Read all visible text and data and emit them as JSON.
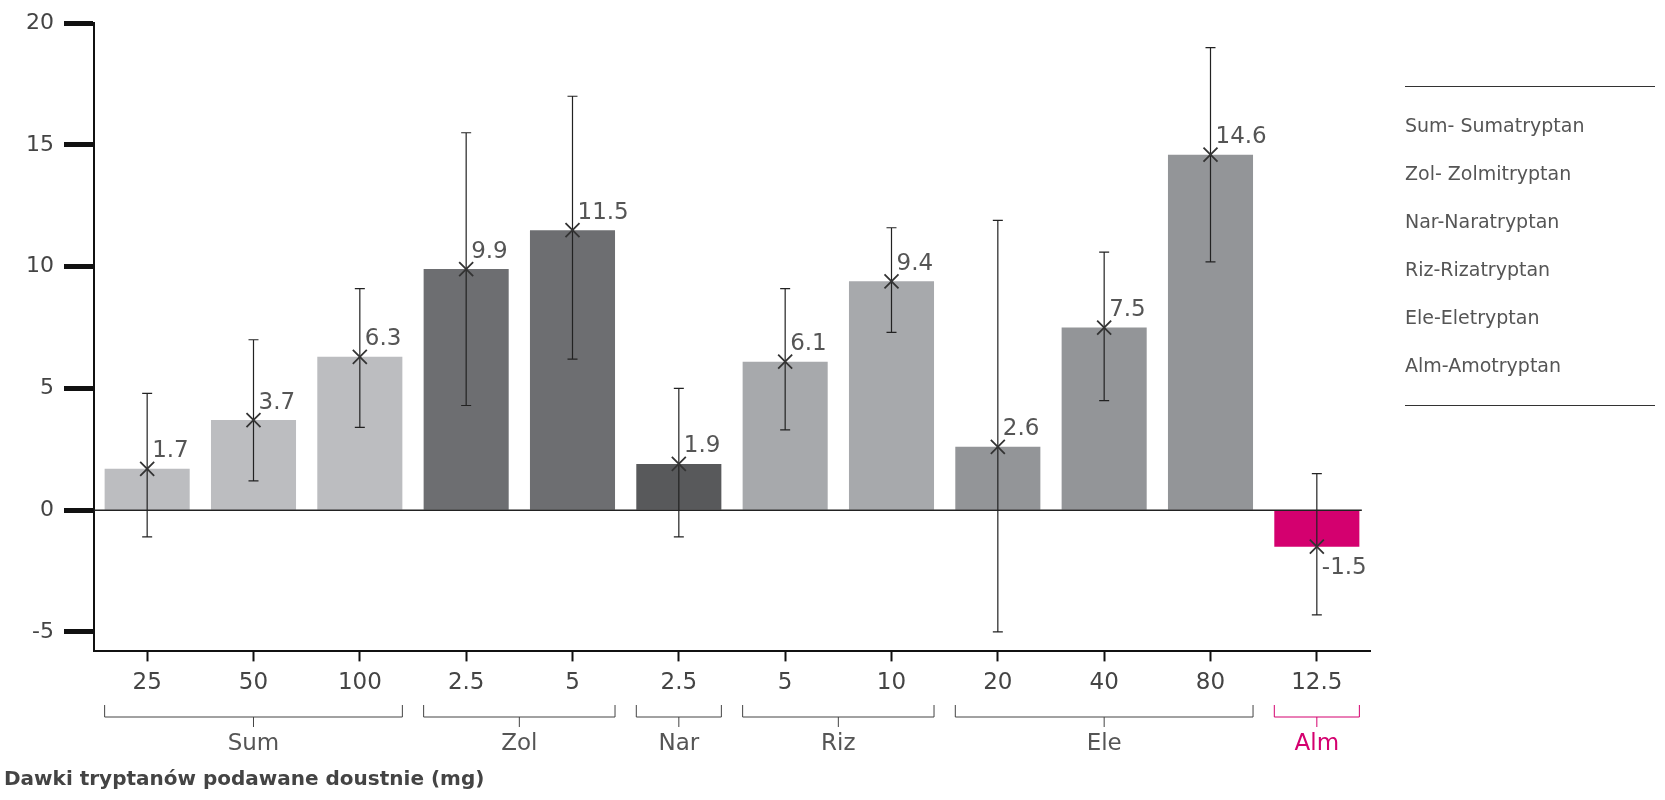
{
  "chart_data": {
    "type": "bar",
    "xlabel": "Dawki tryptanów podawane doustnie (mg)",
    "categories": [
      "25",
      "50",
      "100",
      "2.5",
      "5",
      "2.5",
      "5",
      "10",
      "20",
      "40",
      "80",
      "12.5"
    ],
    "values": [
      1.7,
      3.7,
      6.3,
      9.9,
      11.5,
      1.9,
      6.1,
      9.4,
      2.6,
      7.5,
      14.6,
      -1.5
    ],
    "colors": [
      "#bcbdc0",
      "#bcbdc0",
      "#bcbdc0",
      "#6d6e71",
      "#6d6e71",
      "#58595b",
      "#a7a9ac",
      "#a7a9ac",
      "#939598",
      "#939598",
      "#939598",
      "#d4006f"
    ],
    "errors": [
      [
        -1.1,
        4.8
      ],
      [
        1.2,
        7.0
      ],
      [
        3.4,
        9.1
      ],
      [
        4.3,
        15.5
      ],
      [
        6.2,
        17.0
      ],
      [
        -1.1,
        5.0
      ],
      [
        3.3,
        9.1
      ],
      [
        7.3,
        11.6
      ],
      [
        -5.0,
        11.9
      ],
      [
        4.5,
        10.6
      ],
      [
        10.2,
        19.0
      ],
      [
        -4.3,
        1.5
      ]
    ],
    "ylim": [
      -5.8,
      20
    ],
    "yticks": [
      -5,
      0,
      5,
      10,
      15,
      20
    ],
    "data_labels": true,
    "marker": "cross",
    "annotations": [
      "Sum",
      "Zol",
      "Nar",
      "Riz",
      "Ele",
      "Alm",
      "Sum- Sumatryptan",
      "Zol- Zolmitryptan",
      "Nar-Naratryptan",
      "Riz-Rizatryptan",
      "Ele-Eletryptan",
      "Alm-Amotryptan"
    ]
  }
}
